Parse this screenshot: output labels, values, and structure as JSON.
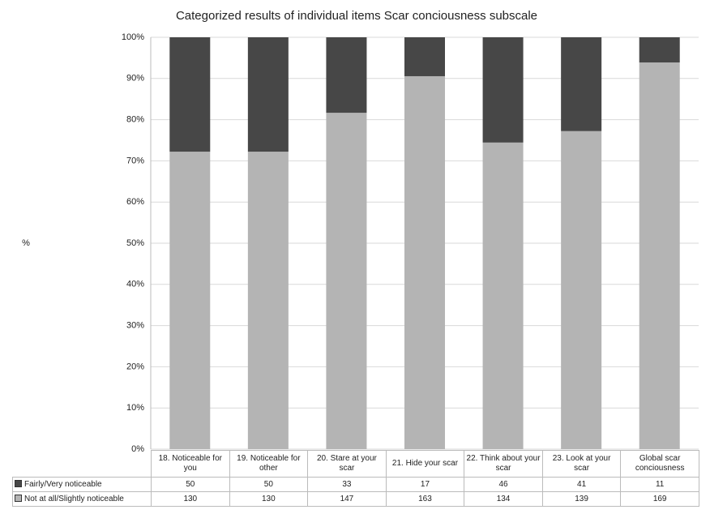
{
  "chart_data": {
    "type": "bar",
    "stack": "percent",
    "title": "Categorized results of individual items Scar conciousness  subscale",
    "ylabel": "%",
    "categories": [
      "18. Noticeable for you",
      "19. Noticeable for other",
      "20. Stare at your scar",
      "21. Hide your scar",
      "22. Think about your scar",
      "23. Look at your scar",
      "Global scar conciousness"
    ],
    "series": [
      {
        "name": "Fairly/Very noticeable",
        "color": "#474747",
        "values": [
          50,
          50,
          33,
          17,
          46,
          41,
          11
        ]
      },
      {
        "name": "Not at all/Slightly noticeable",
        "color": "#b4b4b4",
        "values": [
          130,
          130,
          147,
          163,
          134,
          139,
          169
        ]
      }
    ],
    "ylim": [
      0,
      100
    ],
    "yticks": [
      {
        "value": 0,
        "label": "0%"
      },
      {
        "value": 10,
        "label": "10%"
      },
      {
        "value": 20,
        "label": "20%"
      },
      {
        "value": 30,
        "label": "30%"
      },
      {
        "value": 40,
        "label": "40%"
      },
      {
        "value": 50,
        "label": "50%"
      },
      {
        "value": 60,
        "label": "60%"
      },
      {
        "value": 70,
        "label": "70%"
      },
      {
        "value": 80,
        "label": "80%"
      },
      {
        "value": 90,
        "label": "90%"
      },
      {
        "value": 100,
        "label": "100%"
      }
    ],
    "grid": true
  }
}
